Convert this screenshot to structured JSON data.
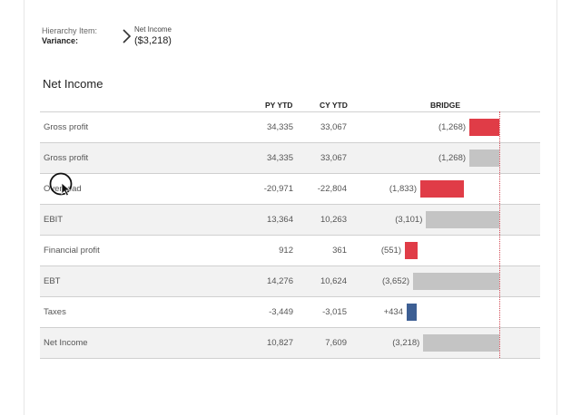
{
  "header": {
    "label_item": "Hierarchy Item:",
    "label_variance": "Variance:",
    "item_value": "Net Income",
    "variance_value": "($3,218)"
  },
  "table": {
    "title": "Net Income",
    "columns": {
      "py": "PY YTD",
      "cy": "CY YTD",
      "bridge": "BRIDGE"
    },
    "rows": [
      {
        "label": "Gross profit",
        "py": "34,335",
        "cy": "33,067",
        "delta": "(1,268)",
        "delta_value": -1268,
        "bar_kind": "negative"
      },
      {
        "label": "Gross profit",
        "py": "34,335",
        "cy": "33,067",
        "delta": "(1,268)",
        "delta_value": -1268,
        "bar_kind": "subtotal"
      },
      {
        "label": "Overhead",
        "py": "-20,971",
        "cy": "-22,804",
        "delta": "(1,833)",
        "delta_value": -1833,
        "bar_kind": "negative"
      },
      {
        "label": "EBIT",
        "py": "13,364",
        "cy": "10,263",
        "delta": "(3,101)",
        "delta_value": -3101,
        "bar_kind": "subtotal"
      },
      {
        "label": "Financial profit",
        "py": "912",
        "cy": "361",
        "delta": "(551)",
        "delta_value": -551,
        "bar_kind": "negative"
      },
      {
        "label": "EBT",
        "py": "14,276",
        "cy": "10,624",
        "delta": "(3,652)",
        "delta_value": -3652,
        "bar_kind": "subtotal"
      },
      {
        "label": "Taxes",
        "py": "-3,449",
        "cy": "-3,015",
        "delta": "+434",
        "delta_value": 434,
        "bar_kind": "positive"
      },
      {
        "label": "Net Income",
        "py": "10,827",
        "cy": "7,609",
        "delta": "(3,218)",
        "delta_value": -3218,
        "bar_kind": "subtotal"
      }
    ]
  },
  "colors": {
    "negative": "#e03c47",
    "positive": "#3d5f94",
    "subtotal": "#c4c4c4",
    "reference_line": "#d24a55"
  }
}
